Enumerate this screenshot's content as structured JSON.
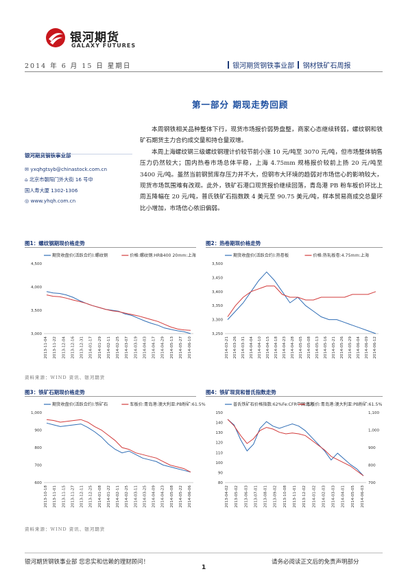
{
  "header": {
    "brand_cn": "银河期货",
    "brand_en": "GALAXY FUTURES",
    "date": "2014 年 6 月 15 日 星期日",
    "dept1": "银河期货钢铁事业部",
    "dept2": "钢材铁矿石周报"
  },
  "section_title": "第一部分 期现走势回顾",
  "left_info": {
    "org": "银河期货钢铁事业部",
    "email": "yxqhgtsyb@chinastock.com.cn",
    "address1": "北京市朝阳门外大街 16 号中",
    "address2": "国人寿大厦 1302-1306",
    "website": "www.yhqh.com.cn"
  },
  "body": {
    "p1": "本周钢铁相关品种整体下行，现货市场报价弱势盘整，商家心态继续转弱，螺纹钢和铁矿石期货主力合约成交量和持仓量双增。",
    "p2": "本周上海螺纹钢三级螺纹钢理计价较节前小涨 10 元/吨至 3070 元/吨，但市场整体销售压力仍然较大；国内热卷市场总体平稳，上海 4.75mm 规格报价较前上扬 20 元/吨至 3400 元/吨。虽然当前钢贸库存压力并不大，但钢市大环境的趋弱对市场信心的影响较大，现货市场氛围难有改观。此外，铁矿石港口现货报价继续回落，青岛港 PB 粉车板价环比上周五降幅在 20 元/吨，普氏铁矿石指数跌 4 美元至 90.75 美元/吨，样本贸易商成交总量环比小增加，市场信心依旧偏弱。"
  },
  "figures": [
    {
      "title": "图1：螺纹钢期现价格走势",
      "legend": [
        "期货收盘价(活跃合约):螺纹钢",
        "价格:螺纹钢:HRB400 20mm:上海"
      ],
      "colors": [
        "#2f6db5",
        "#d23a3a"
      ],
      "y_ticks": [
        "4,500",
        "4,000",
        "3,500",
        "3,000"
      ],
      "x_ticks": [
        "2013-11-04",
        "2013-11-22",
        "2013-12-04",
        "2013-12-16",
        "2013-12-31",
        "2014-01-17",
        "2014-01-29",
        "2014-02-11",
        "2014-02-25",
        "2014-03-07",
        "2014-03-19",
        "2014-04-03",
        "2014-04-17",
        "2014-04-29",
        "2014-05-13",
        "2014-05-27",
        "2014-06-10"
      ],
      "chart_data": {
        "type": "line",
        "ylim": [
          3000,
          4500
        ],
        "series": [
          {
            "name": "期货收盘价(活跃合约):螺纹钢",
            "values": [
              3900,
              3870,
              3860,
              3830,
              3780,
              3710,
              3650,
              3600,
              3560,
              3520,
              3500,
              3480,
              3420,
              3390,
              3330,
              3270,
              3220,
              3180,
              3120,
              3090,
              3060,
              3040,
              3000
            ]
          },
          {
            "name": "价格:螺纹钢:HRB400 20mm:上海",
            "values": [
              3830,
              3800,
              3790,
              3760,
              3720,
              3690,
              3650,
              3600,
              3560,
              3520,
              3490,
              3470,
              3440,
              3410,
              3380,
              3340,
              3300,
              3260,
              3200,
              3140,
              3100,
              3080,
              3070
            ]
          }
        ]
      }
    },
    {
      "title": "图2：热卷期现价格走势",
      "legend": [
        "期货收盘价(活跃合约):热卷板",
        "价格:热轧板卷:4.75mm:上海"
      ],
      "colors": [
        "#2f6db5",
        "#d23a3a"
      ],
      "y_ticks": [
        "3,500",
        "3,450",
        "3,400",
        "3,350",
        "3,300",
        "3,250"
      ],
      "x_ticks": [
        "2014-03-21",
        "2014-03-26",
        "2014-03-31",
        "2014-04-04",
        "2014-04-10",
        "2014-04-15",
        "2014-04-18",
        "2014-04-23",
        "2014-04-28",
        "2014-05-05",
        "2014-05-08",
        "2014-05-13",
        "2014-05-16",
        "2014-05-21",
        "2014-05-26",
        "2014-05-29",
        "2014-06-04",
        "2014-06-09",
        "2014-06-12"
      ],
      "chart_data": {
        "type": "line",
        "ylim": [
          3250,
          3500
        ],
        "series": [
          {
            "name": "期货收盘价(活跃合约):热卷板",
            "values": [
              3300,
              3330,
              3360,
              3400,
              3440,
              3470,
              3440,
              3400,
              3360,
              3380,
              3350,
              3330,
              3310,
              3300,
              3300,
              3290,
              3280,
              3270,
              3260,
              3250
            ]
          },
          {
            "name": "价格:热轧板卷:4.75mm:上海",
            "values": [
              3310,
              3350,
              3380,
              3400,
              3410,
              3420,
              3420,
              3390,
              3380,
              3380,
              3370,
              3370,
              3380,
              3380,
              3380,
              3380,
              3390,
              3390,
              3390,
              3400
            ]
          }
        ]
      }
    },
    {
      "title": "图3：铁矿石期现价格走势",
      "legend": [
        "期货收盘价(活跃合约):铁矿石",
        "车板价:青岛港:澳大利亚:PB粉矿:61.5%"
      ],
      "colors": [
        "#2f6db5",
        "#d23a3a"
      ],
      "y_ticks": [
        "1,000",
        "900",
        "800",
        "700",
        "600"
      ],
      "x_ticks": [
        "2013-10-18",
        "2013-11-01",
        "2013-11-15",
        "2013-11-27",
        "2013-12-11",
        "2013-12-25",
        "2014-01-08",
        "2014-01-22",
        "2014-02-11",
        "2014-02-25",
        "2014-03-11",
        "2014-03-25",
        "2014-04-09",
        "2014-04-23",
        "2014-05-08",
        "2014-05-22",
        "2014-06-06"
      ],
      "chart_data": {
        "type": "line",
        "ylim": [
          600,
          1000
        ],
        "series": [
          {
            "name": "期货收盘价(活跃合约):铁矿石",
            "values": [
              940,
              930,
              920,
              925,
              930,
              935,
              915,
              890,
              860,
              820,
              790,
              770,
              780,
              760,
              740,
              730,
              720,
              700,
              690,
              680,
              670,
              660
            ]
          },
          {
            "name": "车板价:青岛港:澳大利亚:PB粉矿:61.5%",
            "values": [
              960,
              955,
              945,
              950,
              955,
              960,
              945,
              920,
              900,
              870,
              840,
              800,
              790,
              770,
              760,
              750,
              740,
              720,
              700,
              690,
              680,
              660
            ]
          }
        ]
      }
    },
    {
      "title": "图4：铁矿现货和普氏指数走势",
      "legend": [
        "普氏铁矿石价格指数:62%Fe:CFR中国北方",
        "车板价:青岛港:澳大利亚:PB粉矿:61.5%"
      ],
      "colors": [
        "#2f6db5",
        "#d23a3a"
      ],
      "y_ticks": [
        "150",
        "140",
        "130",
        "120",
        "110",
        "100",
        "90",
        "80"
      ],
      "y2_ticks": [
        "1,100",
        "1,000",
        "900",
        "800",
        "700"
      ],
      "x_ticks": [
        "2013-04-02",
        "2013-05-02",
        "2013-06-03",
        "2013-07-01",
        "2013-08-01",
        "2013-09-02",
        "2013-10-08",
        "2013-11-01",
        "2013-12-02",
        "2014-01-02",
        "2014-02-03",
        "2014-03-03",
        "2014-04-01",
        "2014-05-05",
        "2014-06-03"
      ],
      "chart_data": {
        "type": "line",
        "series": [
          {
            "name": "普氏铁矿石价格指数:62%Fe:CFR中国北方",
            "values": [
              140,
              135,
              122,
              112,
              118,
              132,
              138,
              134,
              132,
              134,
              136,
              134,
              130,
              124,
              118,
              112,
              104,
              110,
              105,
              100,
              96,
              90
            ]
          },
          {
            "name": "车板价:青岛港:澳大利亚:PB粉矿:61.5%",
            "values": [
              1050,
              1010,
              950,
              900,
              930,
              980,
              1000,
              990,
              970,
              960,
              965,
              960,
              950,
              920,
              890,
              860,
              820,
              800,
              780,
              760,
              730,
              700
            ]
          }
        ]
      }
    }
  ],
  "source_note": "资料来源：WIND 资讯、银河期货",
  "footer": {
    "left": "银河期货钢铁事业部 您忠实和信赖的理财顾问！",
    "right": "请务必阅读正文后的免责声明部分",
    "page": "1"
  }
}
